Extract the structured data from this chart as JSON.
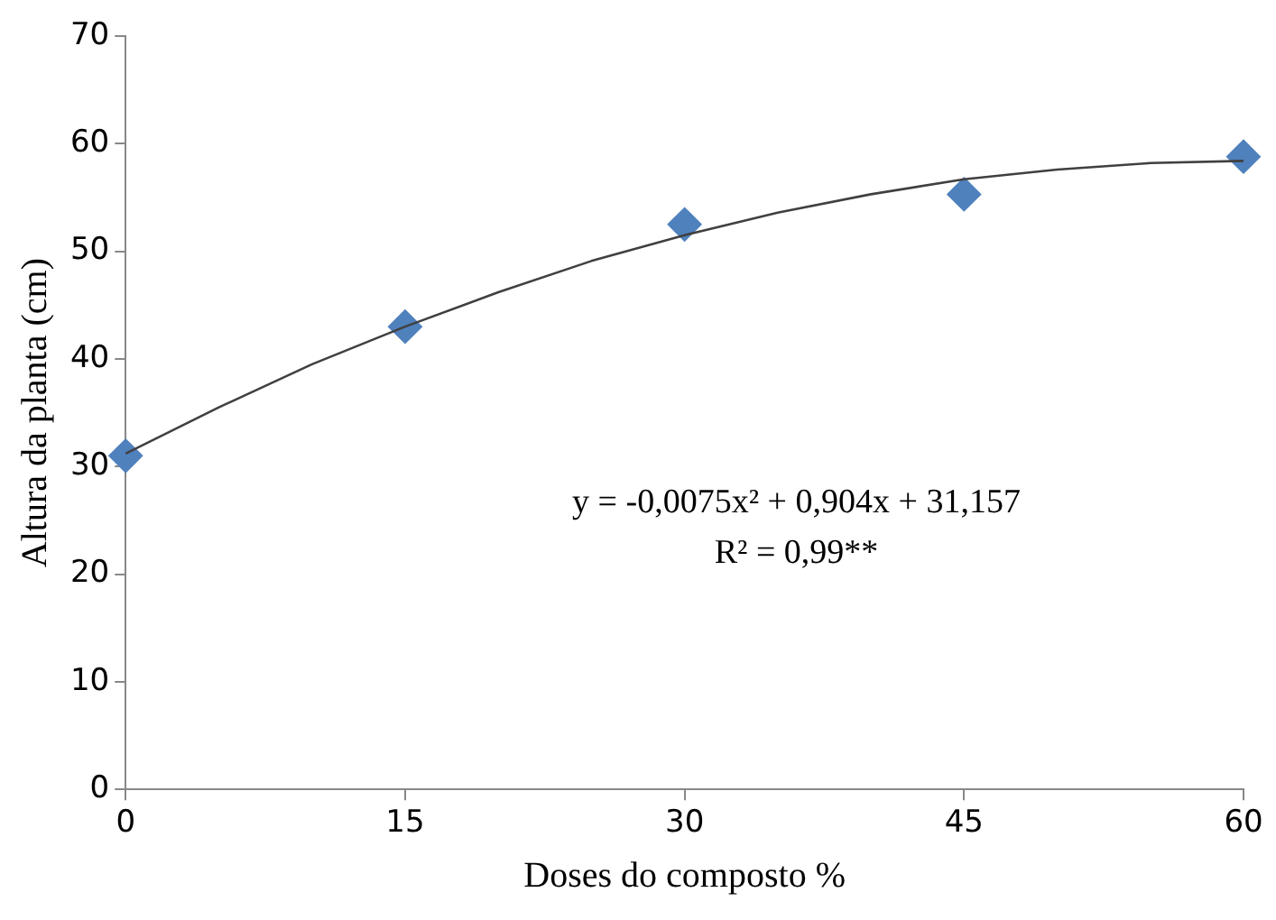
{
  "chart_data": {
    "type": "scatter",
    "xlabel": "Doses do composto %",
    "ylabel": "Altura da planta (cm)",
    "x": [
      0,
      15,
      30,
      45,
      60
    ],
    "series": [
      {
        "type": "scatter",
        "color": "#4f81bd",
        "marker": "diamond",
        "values": [
          31,
          43,
          52.5,
          55.3,
          58.8
        ]
      },
      {
        "type": "line",
        "color": "#404040",
        "marker": "none",
        "x": [
          0,
          5,
          10,
          15,
          20,
          25,
          30,
          35,
          40,
          45,
          50,
          55,
          60
        ],
        "values": [
          31.2,
          35.5,
          39.5,
          43.0,
          46.2,
          49.1,
          51.5,
          53.6,
          55.3,
          56.7,
          57.6,
          58.2,
          58.4
        ]
      }
    ],
    "xlim": [
      0,
      60
    ],
    "xticks": [
      0,
      15,
      30,
      45,
      60
    ],
    "ylim": [
      0,
      70
    ],
    "yticks": [
      0,
      10,
      20,
      30,
      40,
      50,
      60,
      70
    ],
    "grid": false,
    "legend": false,
    "annotations": [
      "y = -0,0075x² + 0,904x + 31,157",
      "R² = 0,99**"
    ]
  }
}
